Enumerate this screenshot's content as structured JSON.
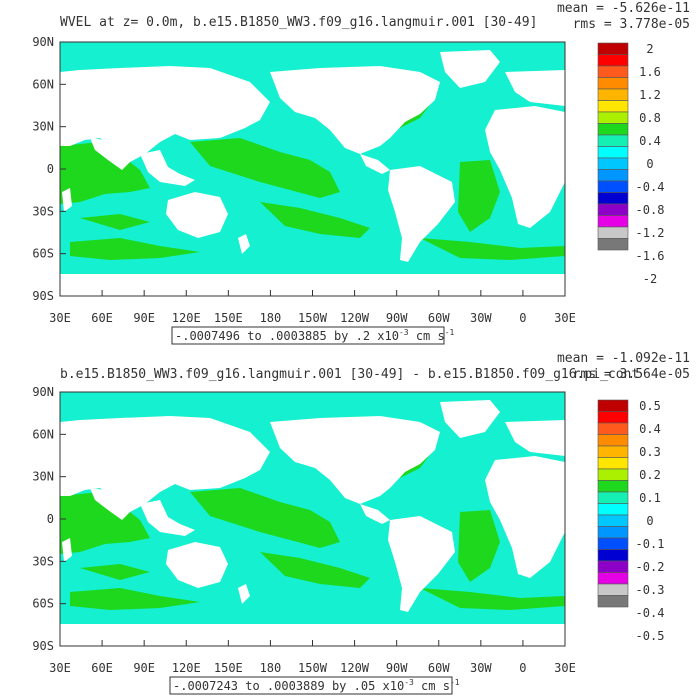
{
  "panels": [
    {
      "title": "WVEL at z=    0.0m, b.e15.B1850_WW3.f09_g16.langmuir.001 [30-49]",
      "mean_text": "mean = -5.626e-11",
      "rms_text": "rms = 3.778e-05",
      "range_note": "-.0007496 to .0003885 by .2 x10",
      "range_exp": "-3",
      "range_unit": " cm s",
      "range_unit_exp": "-1",
      "colorbar_labels": [
        "2",
        "1.6",
        "1.2",
        "0.8",
        "0.4",
        "0",
        "-0.4",
        "-0.8",
        "-1.2",
        "-1.6",
        "-2"
      ],
      "colorbar_colors": [
        "#c00000",
        "#ff0000",
        "#ff5a1e",
        "#ff8c00",
        "#ffb400",
        "#ffe600",
        "#aaf000",
        "#1ed81e",
        "#14f0b4",
        "#00ffff",
        "#00c8ff",
        "#0096ff",
        "#0050ff",
        "#0000d2",
        "#8c00c8",
        "#e600e6",
        "#c8c8c8",
        "#787878"
      ]
    },
    {
      "title": "b.e15.B1850_WW3.f09_g16.langmuir.001 [30-49] - b.e15.B1850.f09_g16.pi_cont",
      "mean_text": "mean = -1.092e-11",
      "rms_text": "rms = 3.564e-05",
      "range_note": "-.0007243 to .0003889 by .05 x10",
      "range_exp": "-3",
      "range_unit": " cm s",
      "range_unit_exp": "-1",
      "colorbar_labels": [
        "0.5",
        "0.4",
        "0.3",
        "0.2",
        "0.1",
        "0",
        "-0.1",
        "-0.2",
        "-0.3",
        "-0.4",
        "-0.5"
      ],
      "colorbar_colors": [
        "#c00000",
        "#ff0000",
        "#ff5a1e",
        "#ff8c00",
        "#ffb400",
        "#ffe600",
        "#aaf000",
        "#1ed81e",
        "#14f0b4",
        "#00ffff",
        "#00c8ff",
        "#0096ff",
        "#0050ff",
        "#0000d2",
        "#8c00c8",
        "#e600e6",
        "#c8c8c8",
        "#787878"
      ]
    }
  ],
  "lat_labels": [
    "90N",
    "60N",
    "30N",
    "0",
    "30S",
    "60S",
    "90S"
  ],
  "lon_labels": [
    "30E",
    "60E",
    "90E",
    "120E",
    "150E",
    "180",
    "150W",
    "120W",
    "90W",
    "60W",
    "30W",
    "0",
    "30E"
  ],
  "map_colors": {
    "ocean_positive": "#1ed81e",
    "ocean_negative": "#14f0d0",
    "land": "#ffffff"
  }
}
